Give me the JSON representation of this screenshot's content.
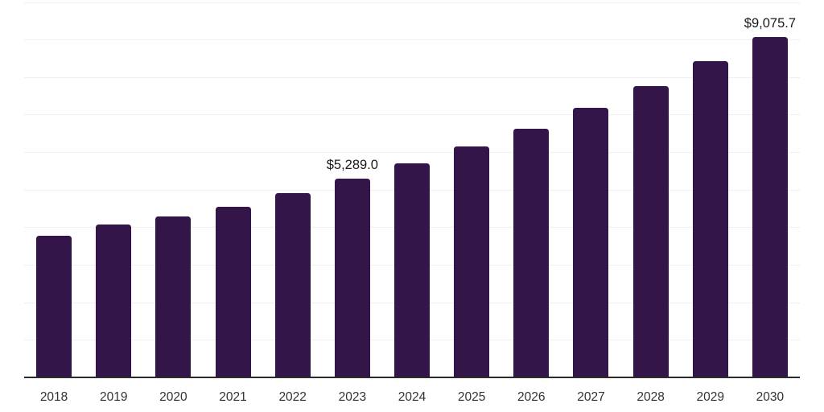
{
  "chart_data": {
    "type": "bar",
    "title": "",
    "xlabel": "",
    "ylabel": "",
    "categories": [
      "2018",
      "2019",
      "2020",
      "2021",
      "2022",
      "2023",
      "2024",
      "2025",
      "2026",
      "2027",
      "2028",
      "2029",
      "2030"
    ],
    "values": [
      3780,
      4080,
      4290,
      4550,
      4910,
      5289.0,
      5710,
      6150,
      6620,
      7180,
      7750,
      8430,
      9075.7
    ],
    "data_labels": {
      "2023": "$5,289.0",
      "2030": "$9,075.7"
    },
    "ylim": [
      0,
      10000
    ],
    "gridline_step": 1000,
    "grid": true,
    "y_axis_tick_labels_shown": false,
    "legend": false,
    "colors": {
      "bar": "#331549",
      "gridline": "#f0f0f0",
      "axis_line": "#2b2b2b",
      "tick_label": "#333333",
      "data_label": "#1a1a1a",
      "background": "#ffffff"
    }
  }
}
